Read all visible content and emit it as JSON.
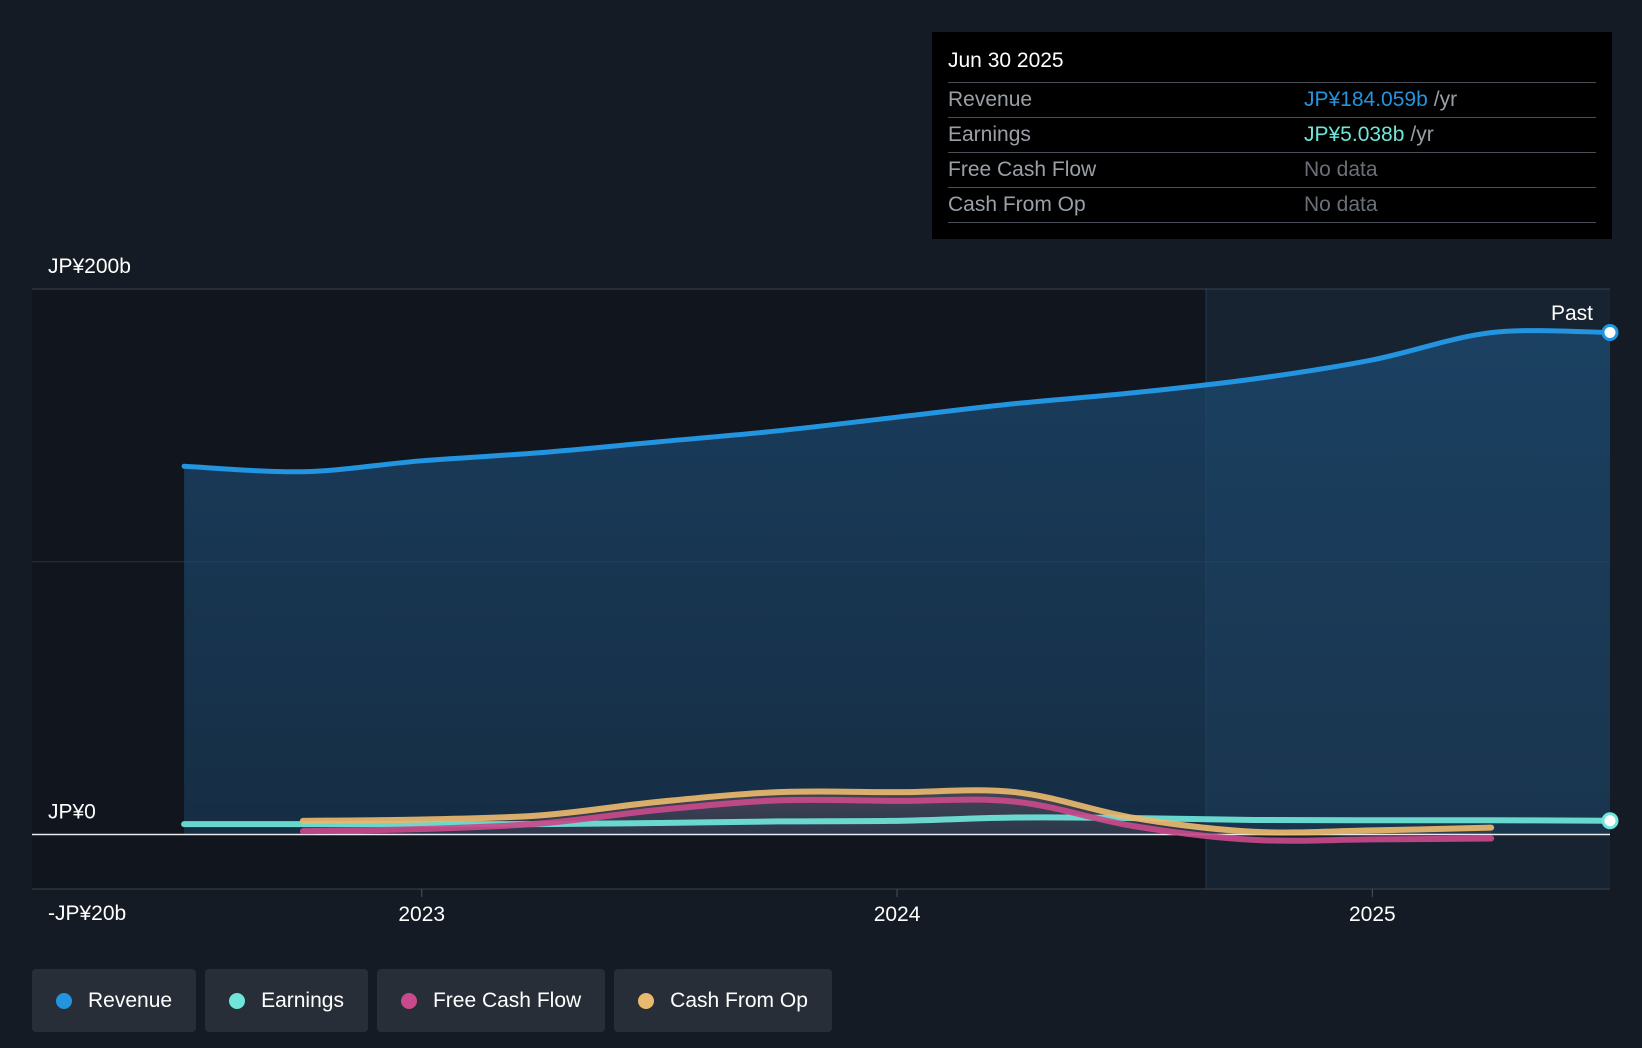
{
  "chart_data": {
    "type": "line",
    "title": "",
    "ylim": [
      -20,
      200
    ],
    "y_tick_labels": [
      "JP¥200b",
      "JP¥0",
      "-JP¥20b"
    ],
    "x_tick_labels": [
      "2023",
      "2024",
      "2025"
    ],
    "past_label": "Past",
    "colors": {
      "Revenue": "#2394df",
      "Earnings": "#6fe6d9",
      "Free Cash Flow": "#c84a8a",
      "Cash From Op": "#e9b96e"
    },
    "series": [
      {
        "name": "Revenue",
        "x": [
          2022.5,
          2022.75,
          2023.0,
          2023.25,
          2023.5,
          2023.75,
          2024.0,
          2024.25,
          2024.5,
          2024.75,
          2025.0,
          2025.25,
          2025.5
        ],
        "values": [
          135,
          133,
          137,
          140,
          144,
          148,
          153,
          158,
          162,
          167,
          174,
          184,
          184.059
        ]
      },
      {
        "name": "Earnings",
        "x": [
          2022.5,
          2022.75,
          2023.0,
          2023.25,
          2023.5,
          2023.75,
          2024.0,
          2024.25,
          2024.5,
          2024.75,
          2025.0,
          2025.25,
          2025.5
        ],
        "values": [
          3.8,
          3.8,
          3.8,
          3.8,
          4.2,
          4.8,
          5.0,
          6.2,
          6.0,
          5.3,
          5.2,
          5.2,
          5.038
        ]
      },
      {
        "name": "Free Cash Flow",
        "x": [
          2022.75,
          2023.0,
          2023.25,
          2023.5,
          2023.75,
          2024.0,
          2024.25,
          2024.5,
          2024.75,
          2025.0,
          2025.25
        ],
        "values": [
          1.2,
          2.0,
          4.0,
          9.0,
          12.5,
          12.3,
          12.0,
          3.0,
          -2.0,
          -1.8,
          -1.5
        ]
      },
      {
        "name": "Cash From Op",
        "x": [
          2022.75,
          2023.0,
          2023.25,
          2023.5,
          2023.75,
          2024.0,
          2024.25,
          2024.5,
          2024.75,
          2025.0,
          2025.25
        ],
        "values": [
          5.0,
          5.5,
          7.0,
          12.0,
          15.5,
          15.5,
          15.5,
          6.0,
          1.0,
          1.5,
          2.5
        ]
      }
    ]
  },
  "tooltip": {
    "date": "Jun 30 2025",
    "rows": [
      {
        "label": "Revenue",
        "value": "JP¥184.059b",
        "unit": "/yr"
      },
      {
        "label": "Earnings",
        "value": "JP¥5.038b",
        "unit": "/yr"
      },
      {
        "label": "Free Cash Flow",
        "value": "No data"
      },
      {
        "label": "Cash From Op",
        "value": "No data"
      }
    ]
  },
  "legend": [
    {
      "label": "Revenue",
      "color": "#2394df"
    },
    {
      "label": "Earnings",
      "color": "#6fe6d9"
    },
    {
      "label": "Free Cash Flow",
      "color": "#c84a8a"
    },
    {
      "label": "Cash From Op",
      "color": "#e9b96e"
    }
  ]
}
